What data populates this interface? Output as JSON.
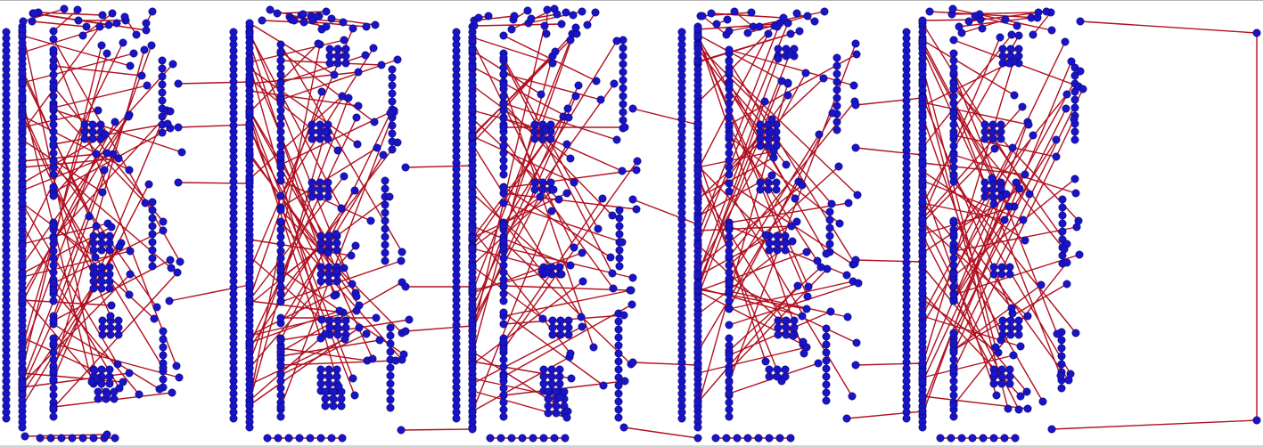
{
  "plot": {
    "node_color": "#1a14c8",
    "node_stroke": "#0b0870",
    "edge_color": "#b01020"
  }
}
